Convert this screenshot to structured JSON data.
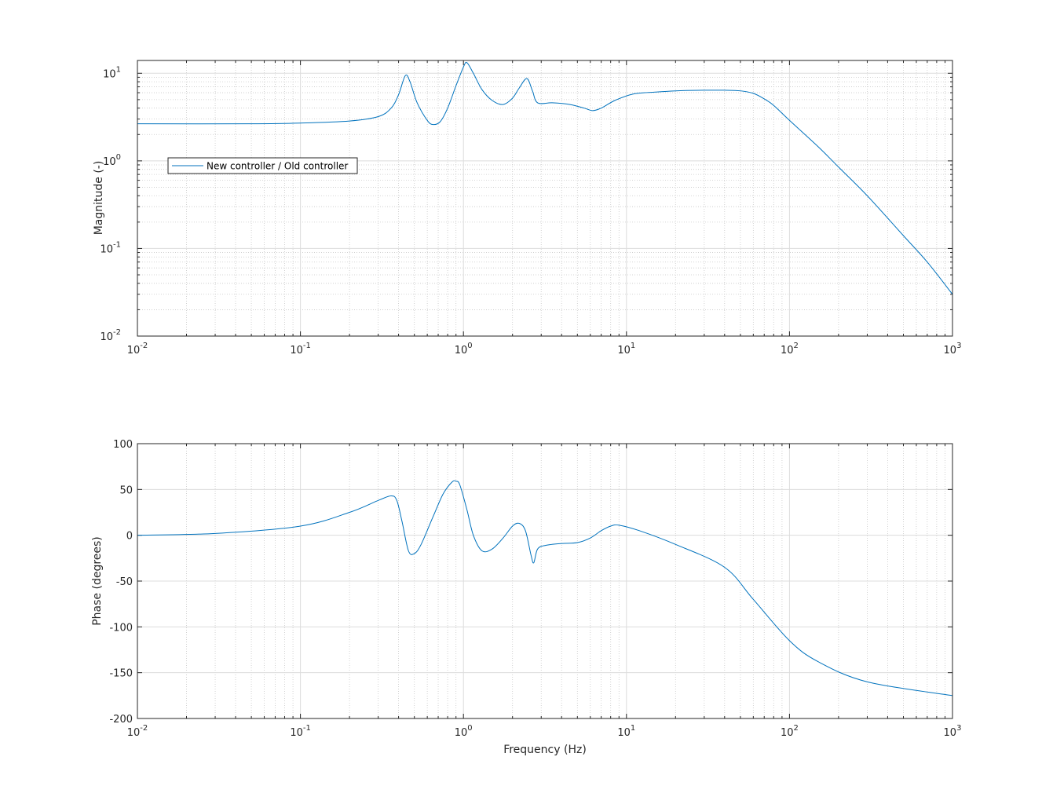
{
  "chart_data": [
    {
      "type": "line",
      "xscale": "log",
      "yscale": "log",
      "xlim": [
        0.01,
        1000
      ],
      "ylim": [
        0.01,
        14
      ],
      "xlabel": "",
      "ylabel": "Magnitude (-)",
      "x_ticks": [
        {
          "base": "10",
          "exp": "-2"
        },
        {
          "base": "10",
          "exp": "-1"
        },
        {
          "base": "10",
          "exp": "0"
        },
        {
          "base": "10",
          "exp": "1"
        },
        {
          "base": "10",
          "exp": "2"
        },
        {
          "base": "10",
          "exp": "3"
        }
      ],
      "y_ticks": [
        {
          "value": 0.01,
          "base": "10",
          "exp": "-2"
        },
        {
          "value": 0.1,
          "base": "10",
          "exp": "-1"
        },
        {
          "value": 1,
          "base": "10",
          "exp": "0"
        },
        {
          "value": 10,
          "base": "10",
          "exp": "1"
        }
      ],
      "grid": true,
      "legend_position": "upper-left",
      "series": [
        {
          "name": "New controller / Old controller",
          "color": "#0072BD",
          "x": [
            0.01,
            0.05,
            0.1,
            0.2,
            0.3,
            0.36,
            0.4,
            0.44,
            0.47,
            0.52,
            0.6,
            0.65,
            0.72,
            0.8,
            0.9,
            1.0,
            1.05,
            1.15,
            1.3,
            1.5,
            1.75,
            2.0,
            2.2,
            2.45,
            2.65,
            2.85,
            3.5,
            4.5,
            5.5,
            6.2,
            7.0,
            8.5,
            11,
            15,
            20,
            30,
            40,
            50,
            60,
            70,
            80,
            100,
            150,
            200,
            300,
            500,
            700,
            1000
          ],
          "y": [
            2.65,
            2.65,
            2.7,
            2.85,
            3.2,
            4.0,
            5.7,
            9.4,
            8.0,
            4.6,
            2.9,
            2.6,
            2.8,
            4.0,
            7.2,
            11.8,
            13.2,
            10.0,
            6.5,
            4.9,
            4.4,
            5.2,
            6.8,
            8.7,
            6.3,
            4.6,
            4.6,
            4.4,
            4.0,
            3.75,
            4.0,
            4.9,
            5.8,
            6.1,
            6.3,
            6.4,
            6.4,
            6.3,
            5.9,
            5.1,
            4.3,
            2.9,
            1.45,
            0.85,
            0.4,
            0.14,
            0.07,
            0.03
          ]
        }
      ]
    },
    {
      "type": "line",
      "xscale": "log",
      "xlim": [
        0.01,
        1000
      ],
      "ylim": [
        -200,
        100
      ],
      "xlabel": "Frequency (Hz)",
      "ylabel": "Phase (degrees)",
      "x_ticks": [
        {
          "base": "10",
          "exp": "-2"
        },
        {
          "base": "10",
          "exp": "-1"
        },
        {
          "base": "10",
          "exp": "0"
        },
        {
          "base": "10",
          "exp": "1"
        },
        {
          "base": "10",
          "exp": "2"
        },
        {
          "base": "10",
          "exp": "3"
        }
      ],
      "y_ticks": [
        {
          "value": 100,
          "label": "100"
        },
        {
          "value": 50,
          "label": "50"
        },
        {
          "value": 0,
          "label": "0"
        },
        {
          "value": -50,
          "label": "-50"
        },
        {
          "value": -100,
          "label": "-100"
        },
        {
          "value": -150,
          "label": "-150"
        },
        {
          "value": -200,
          "label": "-200"
        }
      ],
      "grid": true,
      "series": [
        {
          "name": "",
          "color": "#0072BD",
          "x": [
            0.01,
            0.03,
            0.1,
            0.2,
            0.3,
            0.36,
            0.39,
            0.42,
            0.46,
            0.5,
            0.55,
            0.65,
            0.75,
            0.85,
            0.9,
            0.95,
            1.05,
            1.15,
            1.3,
            1.5,
            1.75,
            2.0,
            2.2,
            2.4,
            2.6,
            2.7,
            2.85,
            3.2,
            4.0,
            5.0,
            6.0,
            7.0,
            8.0,
            9.0,
            12,
            20,
            40,
            60,
            100,
            150,
            300,
            1000
          ],
          "y": [
            0,
            2,
            10,
            25,
            38,
            43,
            38,
            15,
            -17,
            -20,
            -10,
            20,
            45,
            58,
            59,
            55,
            28,
            0,
            -17,
            -15,
            -3,
            10,
            13,
            5,
            -22,
            -30,
            -15,
            -11,
            -9,
            -8,
            -3,
            5,
            10,
            11,
            5,
            -10,
            -35,
            -70,
            -115,
            -138,
            -160,
            -175
          ]
        }
      ]
    }
  ]
}
